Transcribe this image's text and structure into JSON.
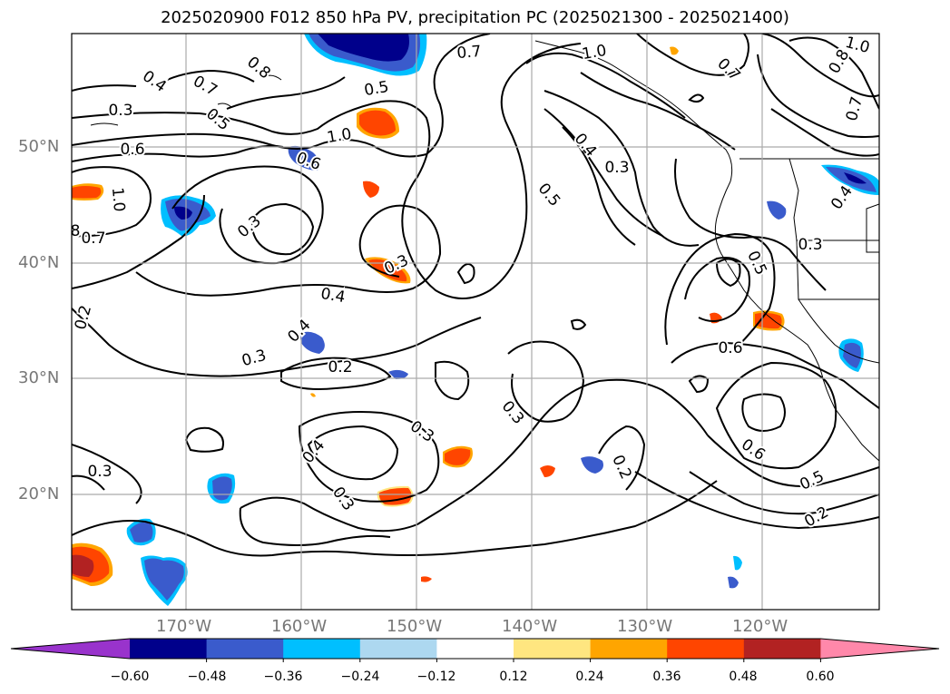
{
  "title": "2025020900 F012 850 hPa PV, precipitation PC (2025021300 - 2025021400)",
  "lat_labels": [
    "50°N",
    "40°N",
    "30°N",
    "20°N"
  ],
  "lon_labels": [
    "170°W",
    "160°W",
    "150°W",
    "140°W",
    "130°W",
    "120°W"
  ],
  "colorbar": {
    "ticks": [
      "−0.60",
      "−0.48",
      "−0.36",
      "−0.24",
      "−0.12",
      "0.12",
      "0.24",
      "0.36",
      "0.48",
      "0.60"
    ],
    "colors": [
      "#9933cc",
      "#00008b",
      "#3a5bcc",
      "#00bfff",
      "#add8f0",
      "#ffffff",
      "#ffe680",
      "#ffa500",
      "#ff4500",
      "#b22222",
      "#ff88aa"
    ]
  },
  "contour_labels": [
    {
      "text": "0.7"
    },
    {
      "text": "0.4"
    },
    {
      "text": "0.7"
    },
    {
      "text": "0.8"
    },
    {
      "text": "0.5"
    },
    {
      "text": "0.3"
    },
    {
      "text": "0.5"
    },
    {
      "text": "0.6"
    },
    {
      "text": "1.0"
    },
    {
      "text": "0.6"
    },
    {
      "text": "1.0"
    },
    {
      "text": "8"
    },
    {
      "text": "0.7"
    },
    {
      "text": "0.3"
    },
    {
      "text": "0.3"
    },
    {
      "text": "0.4"
    },
    {
      "text": "0.2"
    },
    {
      "text": "0.4"
    },
    {
      "text": "0.3"
    },
    {
      "text": "0.2"
    },
    {
      "text": "1.0"
    },
    {
      "text": "0.4"
    },
    {
      "text": "0.3"
    },
    {
      "text": "0.5"
    },
    {
      "text": "0.3"
    },
    {
      "text": "0.3"
    },
    {
      "text": "0.4"
    },
    {
      "text": "0.2"
    },
    {
      "text": "0.3"
    },
    {
      "text": "0.5"
    },
    {
      "text": "0.6"
    },
    {
      "text": "0.6"
    },
    {
      "text": "0.5"
    },
    {
      "text": "0.2"
    },
    {
      "text": "0.7"
    },
    {
      "text": "0.7"
    },
    {
      "text": "1.0"
    },
    {
      "text": "0.8"
    },
    {
      "text": "0.4"
    },
    {
      "text": "0.3"
    },
    {
      "text": "0.3"
    }
  ]
}
